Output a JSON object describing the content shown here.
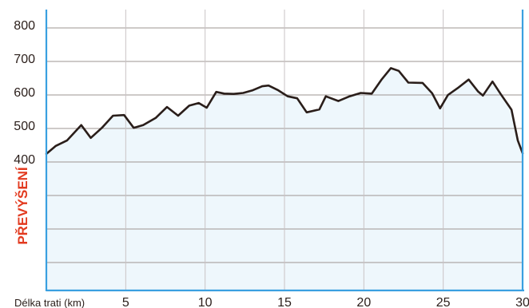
{
  "chart_data": {
    "type": "area",
    "title": "",
    "xlabel": "Délka trati (km)",
    "ylabel": "PŘEVÝŠENÍ",
    "xlim": [
      0,
      30
    ],
    "ylim": [
      0,
      850
    ],
    "x_ticks": [
      5,
      10,
      15,
      20,
      25,
      30
    ],
    "y_ticks": [
      400,
      500,
      600,
      700,
      800
    ],
    "grid": true,
    "series": [
      {
        "points": [
          [
            0,
            424
          ],
          [
            0.6,
            448
          ],
          [
            1.3,
            464
          ],
          [
            2.2,
            510
          ],
          [
            2.8,
            472
          ],
          [
            3.5,
            502
          ],
          [
            4.2,
            538
          ],
          [
            4.9,
            540
          ],
          [
            5.5,
            502
          ],
          [
            6.1,
            510
          ],
          [
            6.9,
            532
          ],
          [
            7.6,
            564
          ],
          [
            8.3,
            538
          ],
          [
            9.0,
            568
          ],
          [
            9.6,
            576
          ],
          [
            10.1,
            562
          ],
          [
            10.7,
            609
          ],
          [
            11.2,
            604
          ],
          [
            11.8,
            603
          ],
          [
            12.4,
            606
          ],
          [
            13.0,
            614
          ],
          [
            13.6,
            626
          ],
          [
            14.0,
            628
          ],
          [
            14.6,
            614
          ],
          [
            15.2,
            596
          ],
          [
            15.8,
            590
          ],
          [
            16.4,
            548
          ],
          [
            17.2,
            557
          ],
          [
            17.6,
            596
          ],
          [
            18.4,
            582
          ],
          [
            19.1,
            596
          ],
          [
            19.8,
            606
          ],
          [
            20.5,
            604
          ],
          [
            21.1,
            645
          ],
          [
            21.7,
            680
          ],
          [
            22.2,
            672
          ],
          [
            22.8,
            637
          ],
          [
            23.7,
            636
          ],
          [
            24.3,
            605
          ],
          [
            24.8,
            560
          ],
          [
            25.3,
            600
          ],
          [
            25.9,
            620
          ],
          [
            26.6,
            646
          ],
          [
            27.2,
            610
          ],
          [
            27.5,
            598
          ],
          [
            28.1,
            640
          ],
          [
            28.6,
            604
          ],
          [
            29.3,
            556
          ],
          [
            29.7,
            464
          ],
          [
            30,
            426
          ]
        ]
      }
    ],
    "colors": {
      "line": "#2a1e1a",
      "fill": "#eef7fc",
      "grid": "#9e9492",
      "axis": "#3aa0e0",
      "ylabel": "#e23a1f",
      "ticks": "#2a1e1a"
    }
  }
}
